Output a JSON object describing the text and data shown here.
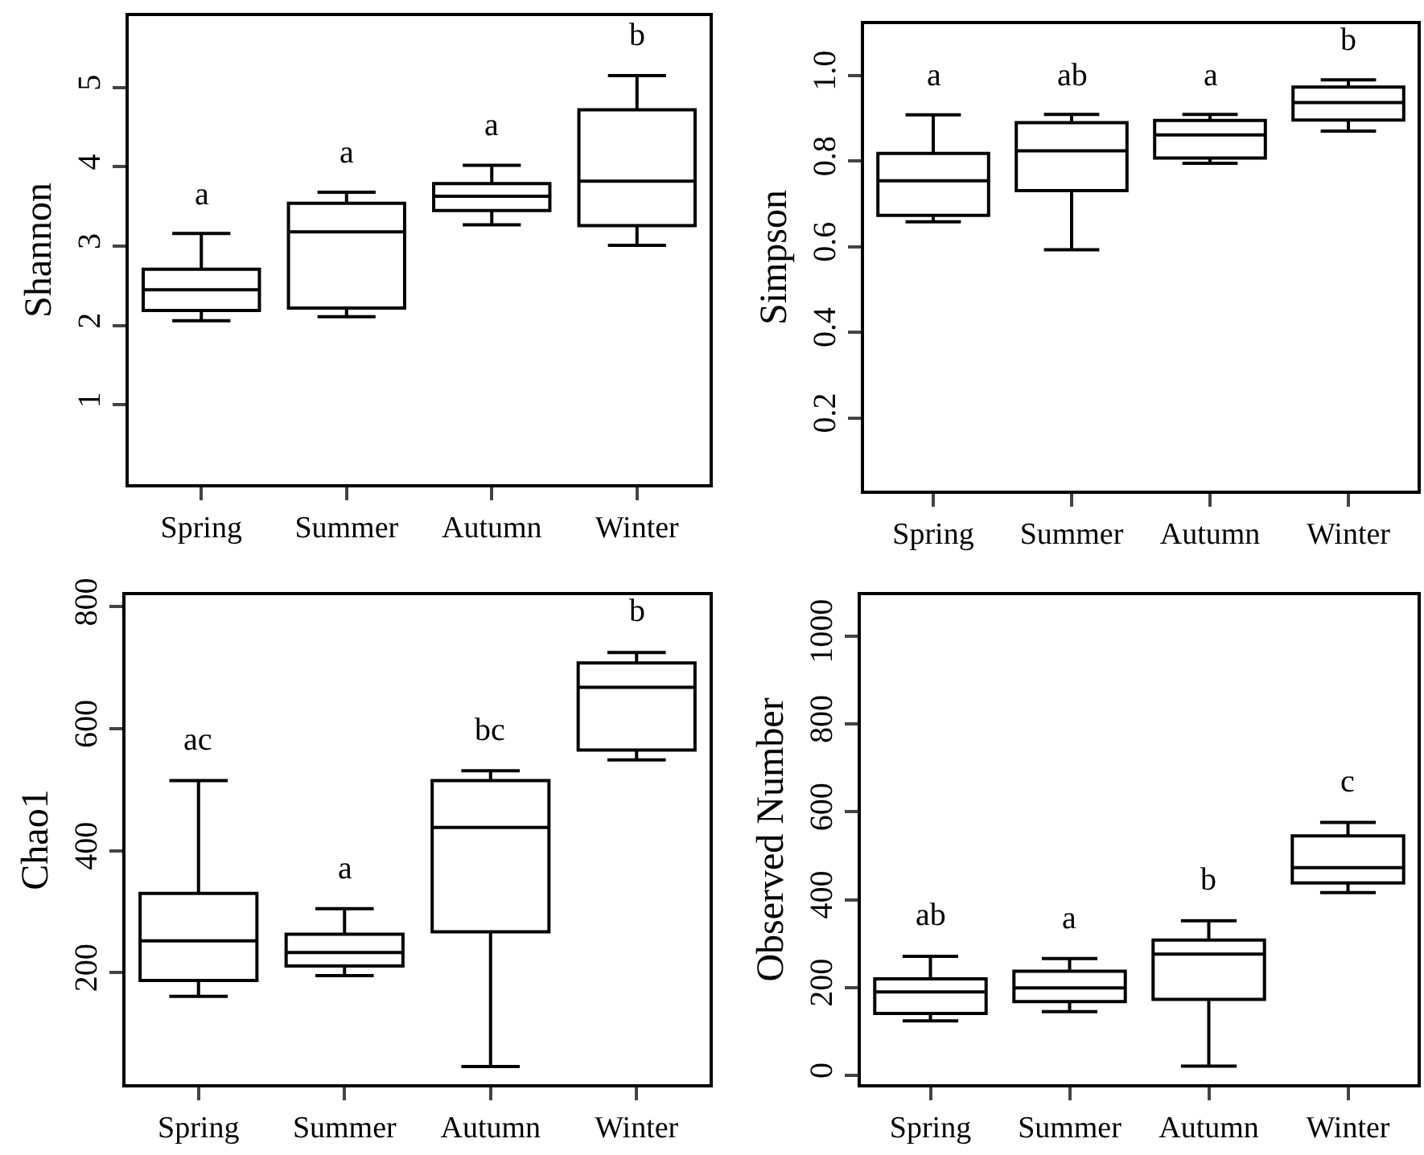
{
  "chart_data": [
    {
      "type": "box",
      "ylabel": "Shannon",
      "categories": [
        "Spring",
        "Summer",
        "Autumn",
        "Winter"
      ],
      "ylim": [
        0,
        5.9
      ],
      "yticks": [
        1,
        2,
        3,
        4,
        5
      ],
      "grid": false,
      "boxes": [
        {
          "low": 2.06,
          "q1": 2.19,
          "median": 2.45,
          "q3": 2.71,
          "high": 3.16
        },
        {
          "low": 2.11,
          "q1": 2.22,
          "median": 3.18,
          "q3": 3.54,
          "high": 3.68
        },
        {
          "low": 3.27,
          "q1": 3.45,
          "median": 3.63,
          "q3": 3.79,
          "high": 4.02
        },
        {
          "low": 3.01,
          "q1": 3.26,
          "median": 3.82,
          "q3": 4.72,
          "high": 5.15
        }
      ],
      "annotations": [
        "a",
        "a",
        "a",
        "b"
      ]
    },
    {
      "type": "box",
      "ylabel": "Simpson",
      "categories": [
        "Spring",
        "Summer",
        "Autumn",
        "Winter"
      ],
      "ylim": [
        0.03,
        1.12
      ],
      "yticks": [
        0.2,
        0.4,
        0.6,
        0.8,
        {
          "value": 1,
          "label": "1.0"
        }
      ],
      "grid": false,
      "boxes": [
        {
          "low": 0.658,
          "q1": 0.673,
          "median": 0.754,
          "q3": 0.818,
          "high": 0.908
        },
        {
          "low": 0.593,
          "q1": 0.731,
          "median": 0.824,
          "q3": 0.89,
          "high": 0.909
        },
        {
          "low": 0.795,
          "q1": 0.807,
          "median": 0.861,
          "q3": 0.895,
          "high": 0.909
        },
        {
          "low": 0.87,
          "q1": 0.896,
          "median": 0.937,
          "q3": 0.973,
          "high": 0.99
        }
      ],
      "annotations": [
        "a",
        "ab",
        "a",
        "b"
      ]
    },
    {
      "type": "box",
      "ylabel": "Chao1",
      "categories": [
        "Spring",
        "Summer",
        "Autumn",
        "Winter"
      ],
      "ylim": [
        17,
        819
      ],
      "yticks": [
        200,
        400,
        600,
        800
      ],
      "grid": false,
      "boxes": [
        {
          "low": 161,
          "q1": 187,
          "median": 252,
          "q3": 330,
          "high": 515
        },
        {
          "low": 195,
          "q1": 211,
          "median": 233,
          "q3": 263,
          "high": 305
        },
        {
          "low": 46,
          "q1": 267,
          "median": 438,
          "q3": 515,
          "high": 531
        },
        {
          "low": 549,
          "q1": 565,
          "median": 668,
          "q3": 708,
          "high": 725
        }
      ],
      "annotations": [
        "ac",
        "a",
        "bc",
        "b"
      ]
    },
    {
      "type": "box",
      "ylabel": "Observed Number",
      "categories": [
        "Spring",
        "Summer",
        "Autumn",
        "Winter"
      ],
      "ylim": [
        -20,
        1093
      ],
      "yticks": [
        0,
        200,
        400,
        600,
        800,
        1000
      ],
      "grid": false,
      "boxes": [
        {
          "low": 124,
          "q1": 141,
          "median": 190,
          "q3": 220,
          "high": 271
        },
        {
          "low": 145,
          "q1": 168,
          "median": 199,
          "q3": 237,
          "high": 266
        },
        {
          "low": 21,
          "q1": 173,
          "median": 276,
          "q3": 308,
          "high": 352
        },
        {
          "low": 416,
          "q1": 438,
          "median": 473,
          "q3": 545,
          "high": 576
        }
      ],
      "annotations": [
        "ab",
        "a",
        "b",
        "c"
      ]
    }
  ]
}
